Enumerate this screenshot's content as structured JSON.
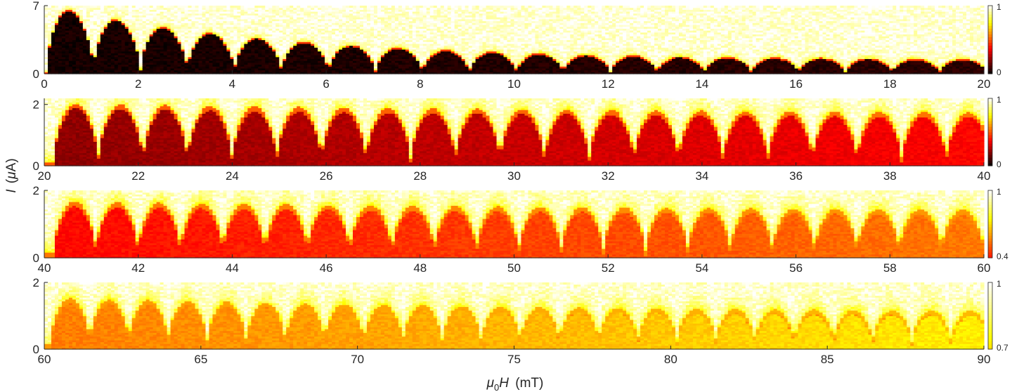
{
  "chart_data": {
    "type": "heatmap",
    "colormap": "hot",
    "axis_titles": {
      "x": {
        "symbol": "μ",
        "subscript": "0",
        "rest": "H",
        "unit": "(mT)"
      },
      "y": {
        "symbol": "I",
        "unit_open": "(",
        "unit_mu": "μ",
        "unit_rest": "A)"
      }
    },
    "panels": [
      {
        "xlim": [
          0,
          20
        ],
        "ylim": [
          0,
          7
        ],
        "xticks": [
          0,
          2,
          4,
          6,
          8,
          10,
          12,
          14,
          16,
          18,
          20
        ],
        "yticks": [
          0,
          7
        ],
        "clim": [
          0,
          1
        ],
        "cticks": [
          0,
          1
        ],
        "lobe_period_mT": 1.0,
        "lobe_offset_mT": 0.05,
        "lobe_height_start": 7.0,
        "lobe_height_end": 1.3,
        "lobe_height_decay_mT": 5.0
      },
      {
        "xlim": [
          20,
          40
        ],
        "ylim": [
          0,
          2.2
        ],
        "xticks": [
          20,
          22,
          24,
          26,
          28,
          30,
          32,
          34,
          36,
          38,
          40
        ],
        "yticks": [
          0,
          2
        ],
        "clim": [
          0,
          1
        ],
        "cticks": [
          0,
          1
        ],
        "lobe_period_mT": 0.95,
        "lobe_offset_mT": 20.2,
        "lobe_height_start": 1.9,
        "lobe_height_end": 1.5,
        "lobe_height_decay_mT": 15.0
      },
      {
        "xlim": [
          40,
          60
        ],
        "ylim": [
          0,
          2
        ],
        "xticks": [
          40,
          42,
          44,
          46,
          48,
          50,
          52,
          54,
          56,
          58,
          60
        ],
        "yticks": [
          0,
          2
        ],
        "clim": [
          0.4,
          1
        ],
        "cticks": [
          0.4,
          1
        ],
        "lobe_period_mT": 0.9,
        "lobe_offset_mT": 40.2,
        "lobe_height_start": 1.55,
        "lobe_height_end": 1.2,
        "lobe_height_decay_mT": 15.0
      },
      {
        "xlim": [
          60,
          90
        ],
        "ylim": [
          0,
          2
        ],
        "xticks": [
          60,
          65,
          70,
          75,
          80,
          85,
          90
        ],
        "yticks": [
          0,
          2
        ],
        "clim": [
          0.7,
          1
        ],
        "cticks": [
          0.7,
          1
        ],
        "lobe_period_mT": 1.25,
        "lobe_offset_mT": 60.2,
        "lobe_height_start": 1.4,
        "lobe_height_end": 0.9,
        "lobe_height_decay_mT": 20.0
      }
    ]
  }
}
